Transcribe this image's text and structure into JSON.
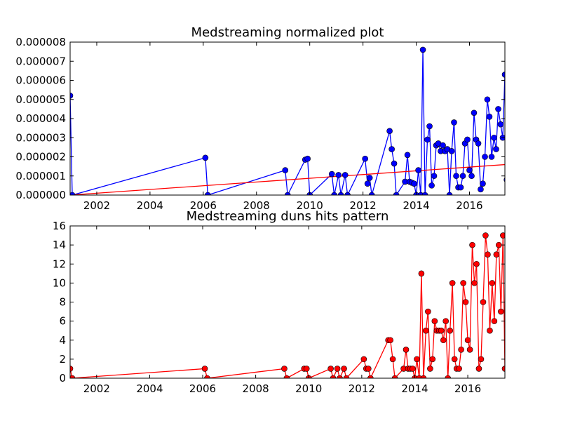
{
  "chart_data": [
    {
      "type": "line",
      "title": "Medstreaming normalized plot",
      "xlabel": "",
      "ylabel": "",
      "xlim": [
        2001.0,
        2017.33
      ],
      "ylim": [
        0,
        8e-06
      ],
      "x_ticks": [
        2002,
        2004,
        2006,
        2008,
        2010,
        2012,
        2014,
        2016
      ],
      "x_tick_labels": [
        "2002",
        "2004",
        "2006",
        "2008",
        "2010",
        "2012",
        "2014",
        "2016"
      ],
      "y_ticks": [
        0,
        1e-06,
        2e-06,
        3e-06,
        4e-06,
        5e-06,
        6e-06,
        7e-06,
        8e-06
      ],
      "y_tick_labels": [
        "0.000000",
        "0.000001",
        "0.000002",
        "0.000003",
        "0.000004",
        "0.000005",
        "0.000006",
        "0.000007",
        "0.000008"
      ],
      "series": [
        {
          "color": "#0000ff",
          "marker_color": "#0000ff",
          "points": [
            [
              2001.0,
              5.2e-06
            ],
            [
              2001.08,
              0
            ],
            [
              2006.08,
              1.95e-06
            ],
            [
              2006.17,
              0
            ],
            [
              2009.08,
              1.3e-06
            ],
            [
              2009.17,
              0
            ],
            [
              2009.83,
              1.85e-06
            ],
            [
              2009.92,
              1.9e-06
            ],
            [
              2010.0,
              0
            ],
            [
              2010.83,
              1.1e-06
            ],
            [
              2010.92,
              0
            ],
            [
              2011.08,
              1.05e-06
            ],
            [
              2011.17,
              0
            ],
            [
              2011.33,
              1.05e-06
            ],
            [
              2011.42,
              0
            ],
            [
              2012.08,
              1.9e-06
            ],
            [
              2012.17,
              6e-07
            ],
            [
              2012.25,
              9e-07
            ],
            [
              2012.33,
              0
            ],
            [
              2013.0,
              3.35e-06
            ],
            [
              2013.08,
              2.4e-06
            ],
            [
              2013.17,
              1.65e-06
            ],
            [
              2013.25,
              0
            ],
            [
              2013.58,
              7e-07
            ],
            [
              2013.67,
              2.1e-06
            ],
            [
              2013.75,
              7e-07
            ],
            [
              2013.83,
              6.5e-07
            ],
            [
              2013.92,
              6e-07
            ],
            [
              2014.0,
              0
            ],
            [
              2014.08,
              1.3e-06
            ],
            [
              2014.17,
              0
            ],
            [
              2014.25,
              7.6e-06
            ],
            [
              2014.33,
              0
            ],
            [
              2014.42,
              2.9e-06
            ],
            [
              2014.5,
              3.6e-06
            ],
            [
              2014.58,
              5e-07
            ],
            [
              2014.67,
              1e-06
            ],
            [
              2014.75,
              2.6e-06
            ],
            [
              2014.83,
              2.7e-06
            ],
            [
              2014.92,
              2.3e-06
            ],
            [
              2015.0,
              2.6e-06
            ],
            [
              2015.08,
              2.3e-06
            ],
            [
              2015.17,
              2.4e-06
            ],
            [
              2015.25,
              0
            ],
            [
              2015.33,
              2.3e-06
            ],
            [
              2015.42,
              3.8e-06
            ],
            [
              2015.5,
              1e-06
            ],
            [
              2015.58,
              4e-07
            ],
            [
              2015.67,
              4e-07
            ],
            [
              2015.75,
              1e-06
            ],
            [
              2015.83,
              2.7e-06
            ],
            [
              2015.92,
              2.9e-06
            ],
            [
              2016.0,
              1.3e-06
            ],
            [
              2016.08,
              1e-06
            ],
            [
              2016.17,
              4.3e-06
            ],
            [
              2016.25,
              2.9e-06
            ],
            [
              2016.33,
              2.7e-06
            ],
            [
              2016.42,
              3e-07
            ],
            [
              2016.5,
              6e-07
            ],
            [
              2016.58,
              2e-06
            ],
            [
              2016.67,
              5e-06
            ],
            [
              2016.75,
              4.1e-06
            ],
            [
              2016.83,
              2e-06
            ],
            [
              2016.92,
              3e-06
            ],
            [
              2017.0,
              2.4e-06
            ],
            [
              2017.08,
              4.5e-06
            ],
            [
              2017.17,
              3.7e-06
            ],
            [
              2017.25,
              3e-06
            ],
            [
              2017.33,
              6.3e-06
            ],
            [
              2017.4,
              8e-07
            ]
          ]
        },
        {
          "color": "#ff0000",
          "marker": "none",
          "points": [
            [
              2001.0,
              0
            ],
            [
              2017.4,
              1.6e-06
            ]
          ]
        }
      ]
    },
    {
      "type": "line",
      "title": "Medstreaming duns hits pattern",
      "xlabel": "",
      "ylabel": "",
      "xlim": [
        2001.0,
        2017.4
      ],
      "ylim": [
        0,
        16
      ],
      "x_ticks": [
        2002,
        2004,
        2006,
        2008,
        2010,
        2012,
        2014,
        2016
      ],
      "x_tick_labels": [
        "2002",
        "2004",
        "2006",
        "2008",
        "2010",
        "2012",
        "2014",
        "2016"
      ],
      "y_ticks": [
        0,
        2,
        4,
        6,
        8,
        10,
        12,
        14,
        16
      ],
      "y_tick_labels": [
        "0",
        "2",
        "4",
        "6",
        "8",
        "10",
        "12",
        "14",
        "16"
      ],
      "series": [
        {
          "color": "#ff0000",
          "marker_color": "#ff0000",
          "points": [
            [
              2001.0,
              1
            ],
            [
              2001.08,
              0
            ],
            [
              2006.08,
              1
            ],
            [
              2006.17,
              0
            ],
            [
              2009.08,
              1
            ],
            [
              2009.17,
              0
            ],
            [
              2009.83,
              1
            ],
            [
              2009.92,
              1
            ],
            [
              2010.0,
              0
            ],
            [
              2010.83,
              1
            ],
            [
              2010.92,
              0
            ],
            [
              2011.08,
              1
            ],
            [
              2011.17,
              0
            ],
            [
              2011.33,
              1
            ],
            [
              2011.42,
              0
            ],
            [
              2012.08,
              2
            ],
            [
              2012.17,
              1
            ],
            [
              2012.25,
              1
            ],
            [
              2012.33,
              0
            ],
            [
              2013.0,
              4
            ],
            [
              2013.08,
              4
            ],
            [
              2013.17,
              2
            ],
            [
              2013.25,
              0
            ],
            [
              2013.58,
              1
            ],
            [
              2013.67,
              3
            ],
            [
              2013.75,
              1
            ],
            [
              2013.83,
              1
            ],
            [
              2013.92,
              1
            ],
            [
              2014.0,
              0
            ],
            [
              2014.08,
              2
            ],
            [
              2014.17,
              0
            ],
            [
              2014.25,
              11
            ],
            [
              2014.33,
              0
            ],
            [
              2014.42,
              5
            ],
            [
              2014.5,
              7
            ],
            [
              2014.58,
              1
            ],
            [
              2014.67,
              2
            ],
            [
              2014.75,
              6
            ],
            [
              2014.83,
              5
            ],
            [
              2014.92,
              5
            ],
            [
              2015.0,
              5
            ],
            [
              2015.08,
              4
            ],
            [
              2015.17,
              6
            ],
            [
              2015.25,
              0
            ],
            [
              2015.33,
              5
            ],
            [
              2015.42,
              10
            ],
            [
              2015.5,
              2
            ],
            [
              2015.58,
              1
            ],
            [
              2015.67,
              1
            ],
            [
              2015.75,
              3
            ],
            [
              2015.83,
              10
            ],
            [
              2015.92,
              8
            ],
            [
              2016.0,
              4
            ],
            [
              2016.08,
              3
            ],
            [
              2016.17,
              14
            ],
            [
              2016.25,
              10
            ],
            [
              2016.33,
              12
            ],
            [
              2016.42,
              1
            ],
            [
              2016.5,
              2
            ],
            [
              2016.58,
              8
            ],
            [
              2016.67,
              15
            ],
            [
              2016.75,
              13
            ],
            [
              2016.83,
              5
            ],
            [
              2016.92,
              10
            ],
            [
              2017.0,
              6
            ],
            [
              2017.08,
              13
            ],
            [
              2017.17,
              14
            ],
            [
              2017.25,
              7
            ],
            [
              2017.33,
              15
            ],
            [
              2017.4,
              1
            ]
          ]
        }
      ]
    }
  ]
}
